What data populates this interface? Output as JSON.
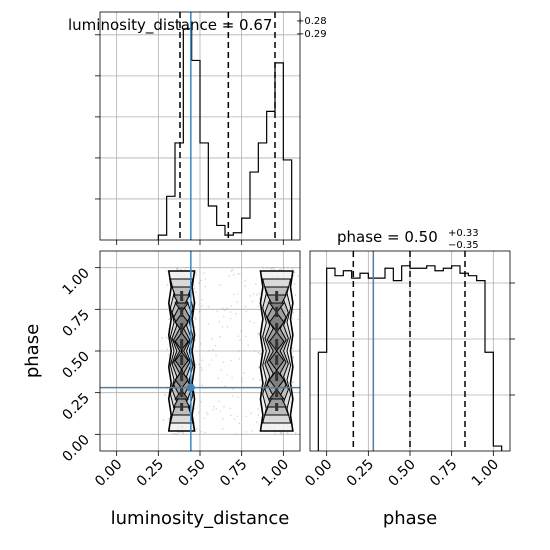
{
  "figure": {
    "type": "corner_plot",
    "colors": {
      "truth": "#4682b4",
      "lines": "#000000",
      "grid": "#b0b0b0",
      "samples": "#808080"
    }
  },
  "chart_data": [
    {
      "type": "histogram",
      "parameter": "luminosity_distance",
      "title": {
        "prefix": "luminosity_distance = 0.67",
        "sup": "+0.28",
        "sub": "−0.29"
      },
      "xlim": [
        -0.1,
        1.1
      ],
      "bin_edges": [
        0.25,
        0.3,
        0.35,
        0.4,
        0.45,
        0.5,
        0.55,
        0.6,
        0.65,
        0.7,
        0.75,
        0.8,
        0.85,
        0.9,
        0.95,
        1.0,
        1.05
      ],
      "counts": [
        2,
        18,
        40,
        87,
        74,
        40,
        14,
        6,
        2,
        3,
        9,
        28,
        40,
        53,
        73,
        33
      ],
      "quantiles": [
        0.38,
        0.67,
        0.95
      ],
      "truth": 0.445,
      "grid": true
    },
    {
      "type": "histogram",
      "parameter": "phase",
      "title": {
        "prefix": "phase = 0.50",
        "sup": "+0.33",
        "sub": "−0.35"
      },
      "xlim": [
        -0.1,
        1.1
      ],
      "bin_edges": [
        -0.05,
        0.0,
        0.05,
        0.1,
        0.15,
        0.2,
        0.25,
        0.3,
        0.35,
        0.4,
        0.45,
        0.5,
        0.55,
        0.6,
        0.65,
        0.7,
        0.75,
        0.8,
        0.85,
        0.9,
        0.95,
        1.0,
        1.05
      ],
      "counts": [
        40,
        74,
        71,
        73,
        70,
        72,
        70,
        70,
        74,
        69,
        75,
        74,
        74,
        75,
        73,
        74,
        75,
        72,
        71,
        69,
        40,
        2
      ],
      "quantiles": [
        0.16,
        0.5,
        0.83
      ],
      "truth": 0.28,
      "grid": true
    },
    {
      "type": "scatter",
      "x_parameter": "luminosity_distance",
      "y_parameter": "phase",
      "xlabel": "luminosity_distance",
      "ylabel": "phase",
      "xlim": [
        -0.1,
        1.1
      ],
      "ylim": [
        -0.1,
        1.1
      ],
      "xticks": [
        "0.00",
        "0.25",
        "0.50",
        "0.75",
        "1.00"
      ],
      "yticks": [
        "0.00",
        "0.25",
        "0.50",
        "0.75",
        "1.00"
      ],
      "clusters": [
        {
          "x_center": 0.39,
          "x_width": 0.07,
          "y_range": [
            0.0,
            1.0
          ]
        },
        {
          "x_center": 0.96,
          "x_width": 0.09,
          "y_range": [
            0.0,
            1.0
          ]
        }
      ],
      "truth": {
        "x": 0.445,
        "y": 0.28
      },
      "grid": true
    },
    {
      "type": "axis",
      "parameter": "phase",
      "xlabel": "phase",
      "xticks": [
        "0.00",
        "0.25",
        "0.50",
        "0.75",
        "1.00"
      ]
    }
  ]
}
